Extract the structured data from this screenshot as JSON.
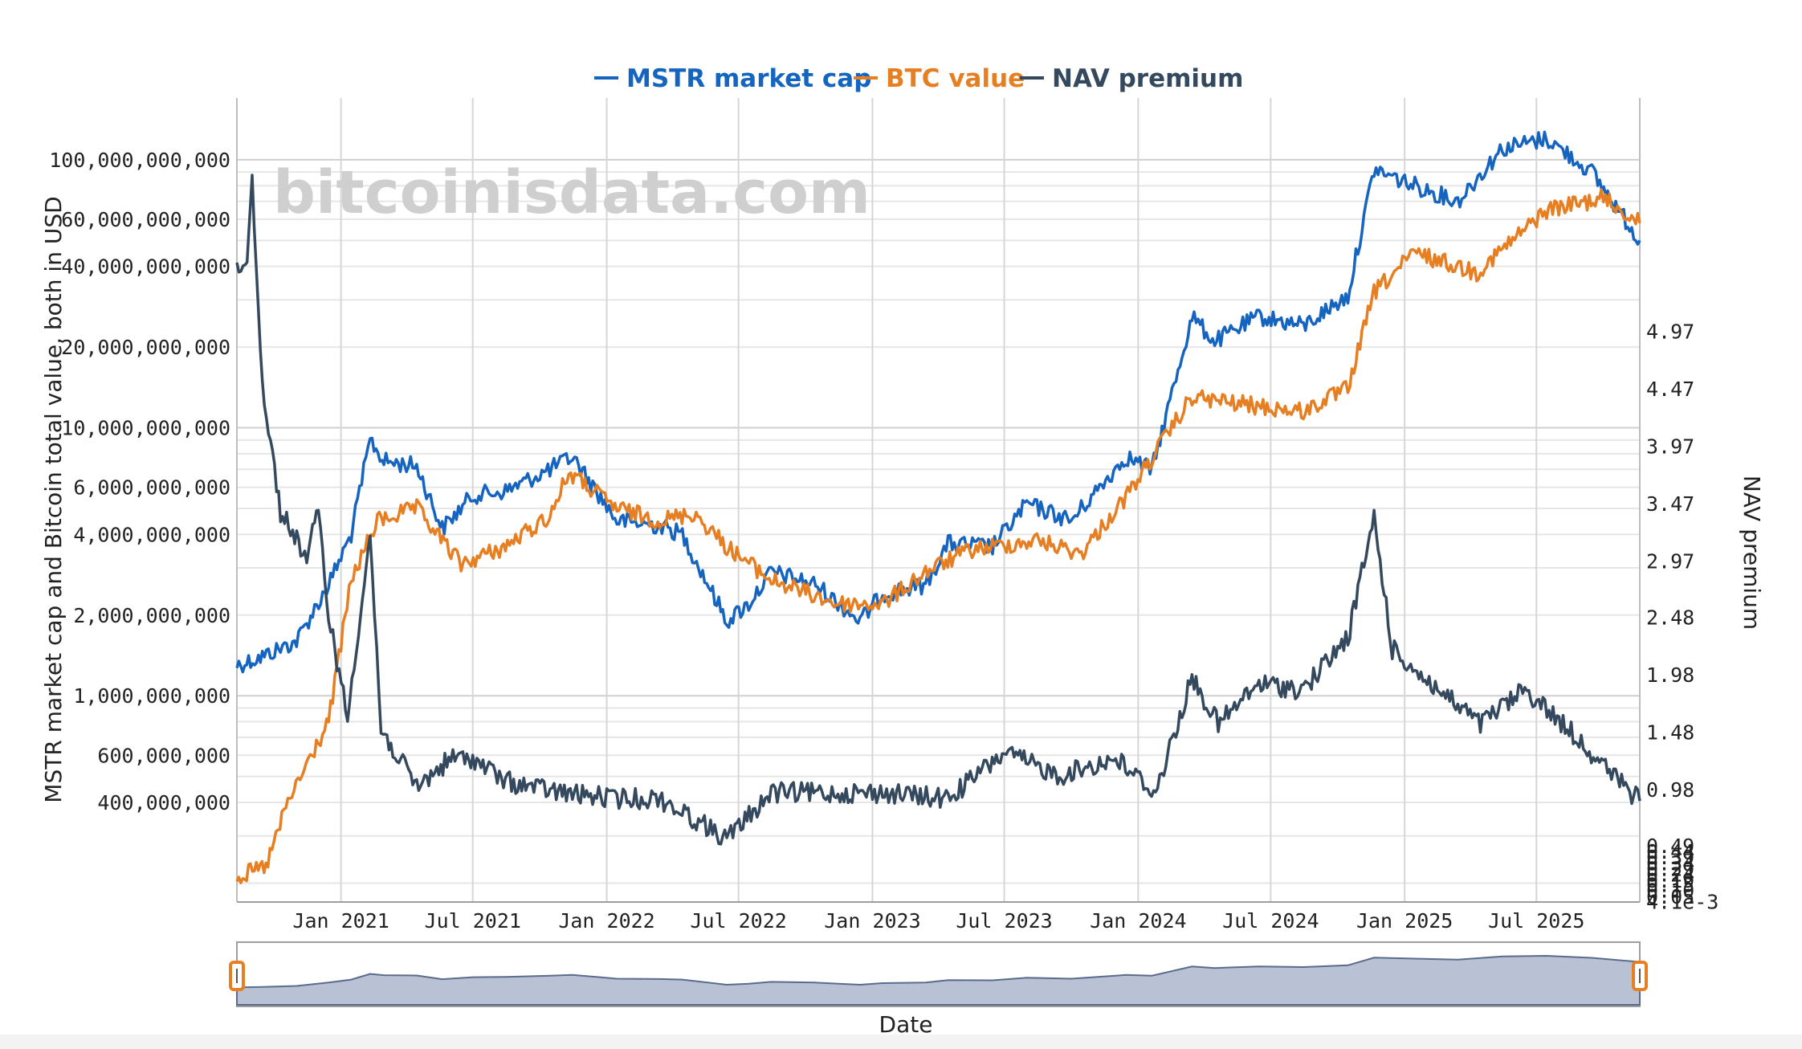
{
  "chart_data": {
    "type": "line",
    "watermark": "bitcoinisdata.com",
    "xlabel": "Date",
    "ylabel": "MSTR market cap and Bitcoin total value, both in USD",
    "y2label": "NAV premium",
    "x_range": [
      "2020-08-11",
      "2025-11-20"
    ],
    "x_ticks": [
      "Jan 2021",
      "Jul 2021",
      "Jan 2022",
      "Jul 2022",
      "Jan 2023",
      "Jul 2023",
      "Jan 2024",
      "Jul 2024",
      "Jan 2025",
      "Jul 2025"
    ],
    "y_scale": "log",
    "ylim": [
      170000000,
      170000000000
    ],
    "y_ticks": [
      "100,000,000,000",
      "60,000,000,000",
      "40,000,000,000",
      "20,000,000,000",
      "10,000,000,000",
      "6,000,000,000",
      "4,000,000,000",
      "2,000,000,000",
      "1,000,000,000",
      "600,000,000",
      "400,000,000"
    ],
    "y2lim": [
      0,
      7
    ],
    "y2_ticks": [
      "4.97",
      "4.47",
      "3.97",
      "3.47",
      "2.97",
      "2.48",
      "1.98",
      "1.48",
      "0.98",
      "0.49",
      "4.1e-3"
    ],
    "y2_crowded_ticks": [
      "0.44",
      "0.39",
      "0.34",
      "0.29",
      "0.24",
      "0.19",
      "0.15",
      "0.10",
      "0.05"
    ],
    "legend_position": "top-center",
    "series": [
      {
        "name": "MSTR market cap",
        "color": "#1565c0",
        "points": [
          [
            "2020-08-11",
            1300000000
          ],
          [
            "2020-09-15",
            1400000000
          ],
          [
            "2020-11-01",
            1600000000
          ],
          [
            "2020-12-15",
            2600000000
          ],
          [
            "2021-01-15",
            4000000000
          ],
          [
            "2021-02-10",
            9000000000
          ],
          [
            "2021-03-01",
            7500000000
          ],
          [
            "2021-04-15",
            7200000000
          ],
          [
            "2021-05-20",
            4200000000
          ],
          [
            "2021-07-01",
            5600000000
          ],
          [
            "2021-08-15",
            5800000000
          ],
          [
            "2021-10-15",
            7000000000
          ],
          [
            "2021-11-15",
            7800000000
          ],
          [
            "2022-01-15",
            4500000000
          ],
          [
            "2022-03-15",
            4300000000
          ],
          [
            "2022-04-15",
            4000000000
          ],
          [
            "2022-06-15",
            1900000000
          ],
          [
            "2022-07-15",
            2200000000
          ],
          [
            "2022-08-15",
            2900000000
          ],
          [
            "2022-10-15",
            2600000000
          ],
          [
            "2022-12-15",
            1900000000
          ],
          [
            "2023-01-15",
            2400000000
          ],
          [
            "2023-03-15",
            2600000000
          ],
          [
            "2023-04-15",
            3700000000
          ],
          [
            "2023-06-15",
            3600000000
          ],
          [
            "2023-08-01",
            5200000000
          ],
          [
            "2023-10-01",
            4500000000
          ],
          [
            "2023-12-15",
            7800000000
          ],
          [
            "2024-01-20",
            7000000000
          ],
          [
            "2024-03-15",
            26000000000
          ],
          [
            "2024-04-15",
            21000000000
          ],
          [
            "2024-06-15",
            26000000000
          ],
          [
            "2024-08-15",
            24000000000
          ],
          [
            "2024-10-15",
            31000000000
          ],
          [
            "2024-11-20",
            92000000000
          ],
          [
            "2025-01-15",
            80000000000
          ],
          [
            "2025-03-15",
            70000000000
          ],
          [
            "2025-05-15",
            110000000000
          ],
          [
            "2025-07-15",
            120000000000
          ],
          [
            "2025-09-15",
            90000000000
          ],
          [
            "2025-11-20",
            50000000000
          ]
        ]
      },
      {
        "name": "BTC value",
        "color": "#e67e22",
        "points": [
          [
            "2020-08-11",
            210000000
          ],
          [
            "2020-09-20",
            230000000
          ],
          [
            "2020-10-20",
            400000000
          ],
          [
            "2020-12-15",
            800000000
          ],
          [
            "2021-01-15",
            2700000000
          ],
          [
            "2021-02-20",
            4500000000
          ],
          [
            "2021-04-15",
            5000000000
          ],
          [
            "2021-06-15",
            3100000000
          ],
          [
            "2021-08-15",
            3600000000
          ],
          [
            "2021-10-15",
            4700000000
          ],
          [
            "2021-11-10",
            6800000000
          ],
          [
            "2022-01-15",
            5000000000
          ],
          [
            "2022-03-15",
            4500000000
          ],
          [
            "2022-05-01",
            4800000000
          ],
          [
            "2022-06-15",
            3600000000
          ],
          [
            "2022-08-15",
            2700000000
          ],
          [
            "2022-11-15",
            2200000000
          ],
          [
            "2023-01-15",
            2200000000
          ],
          [
            "2023-03-15",
            2900000000
          ],
          [
            "2023-05-15",
            3500000000
          ],
          [
            "2023-08-15",
            3800000000
          ],
          [
            "2023-10-15",
            3400000000
          ],
          [
            "2023-12-15",
            5500000000
          ],
          [
            "2024-03-15",
            13000000000
          ],
          [
            "2024-06-15",
            12000000000
          ],
          [
            "2024-08-15",
            11500000000
          ],
          [
            "2024-10-15",
            14000000000
          ],
          [
            "2024-11-20",
            32000000000
          ],
          [
            "2025-01-15",
            45000000000
          ],
          [
            "2025-04-10",
            38000000000
          ],
          [
            "2025-07-15",
            65000000000
          ],
          [
            "2025-10-01",
            72000000000
          ],
          [
            "2025-11-20",
            58000000000
          ]
        ]
      },
      {
        "name": "NAV premium",
        "color": "#34495e",
        "axis": "y2",
        "points": [
          [
            "2020-08-11",
            5.5
          ],
          [
            "2020-08-25",
            5.6
          ],
          [
            "2020-09-01",
            6.3
          ],
          [
            "2020-09-15",
            4.5
          ],
          [
            "2020-10-10",
            3.4
          ],
          [
            "2020-11-15",
            3.0
          ],
          [
            "2020-12-01",
            3.4
          ],
          [
            "2020-12-15",
            2.5
          ],
          [
            "2021-01-10",
            1.6
          ],
          [
            "2021-01-25",
            2.4
          ],
          [
            "2021-02-10",
            3.2
          ],
          [
            "2021-02-25",
            1.5
          ],
          [
            "2021-04-15",
            1.0
          ],
          [
            "2021-06-01",
            1.25
          ],
          [
            "2021-07-01",
            1.25
          ],
          [
            "2021-08-15",
            1.05
          ],
          [
            "2021-11-01",
            0.95
          ],
          [
            "2022-01-15",
            0.9
          ],
          [
            "2022-03-15",
            0.9
          ],
          [
            "2022-06-15",
            0.55
          ],
          [
            "2022-08-15",
            0.95
          ],
          [
            "2022-10-15",
            0.95
          ],
          [
            "2023-01-15",
            0.95
          ],
          [
            "2023-04-15",
            0.9
          ],
          [
            "2023-07-01",
            1.3
          ],
          [
            "2023-09-15",
            1.1
          ],
          [
            "2023-12-01",
            1.25
          ],
          [
            "2024-01-25",
            0.95
          ],
          [
            "2024-03-15",
            1.95
          ],
          [
            "2024-04-20",
            1.55
          ],
          [
            "2024-06-15",
            1.9
          ],
          [
            "2024-08-15",
            1.85
          ],
          [
            "2024-10-15",
            2.3
          ],
          [
            "2024-11-20",
            3.35
          ],
          [
            "2024-12-15",
            2.2
          ],
          [
            "2025-02-15",
            1.85
          ],
          [
            "2025-04-15",
            1.55
          ],
          [
            "2025-06-15",
            1.85
          ],
          [
            "2025-08-15",
            1.5
          ],
          [
            "2025-10-15",
            1.1
          ],
          [
            "2025-11-20",
            0.88
          ]
        ]
      }
    ]
  }
}
